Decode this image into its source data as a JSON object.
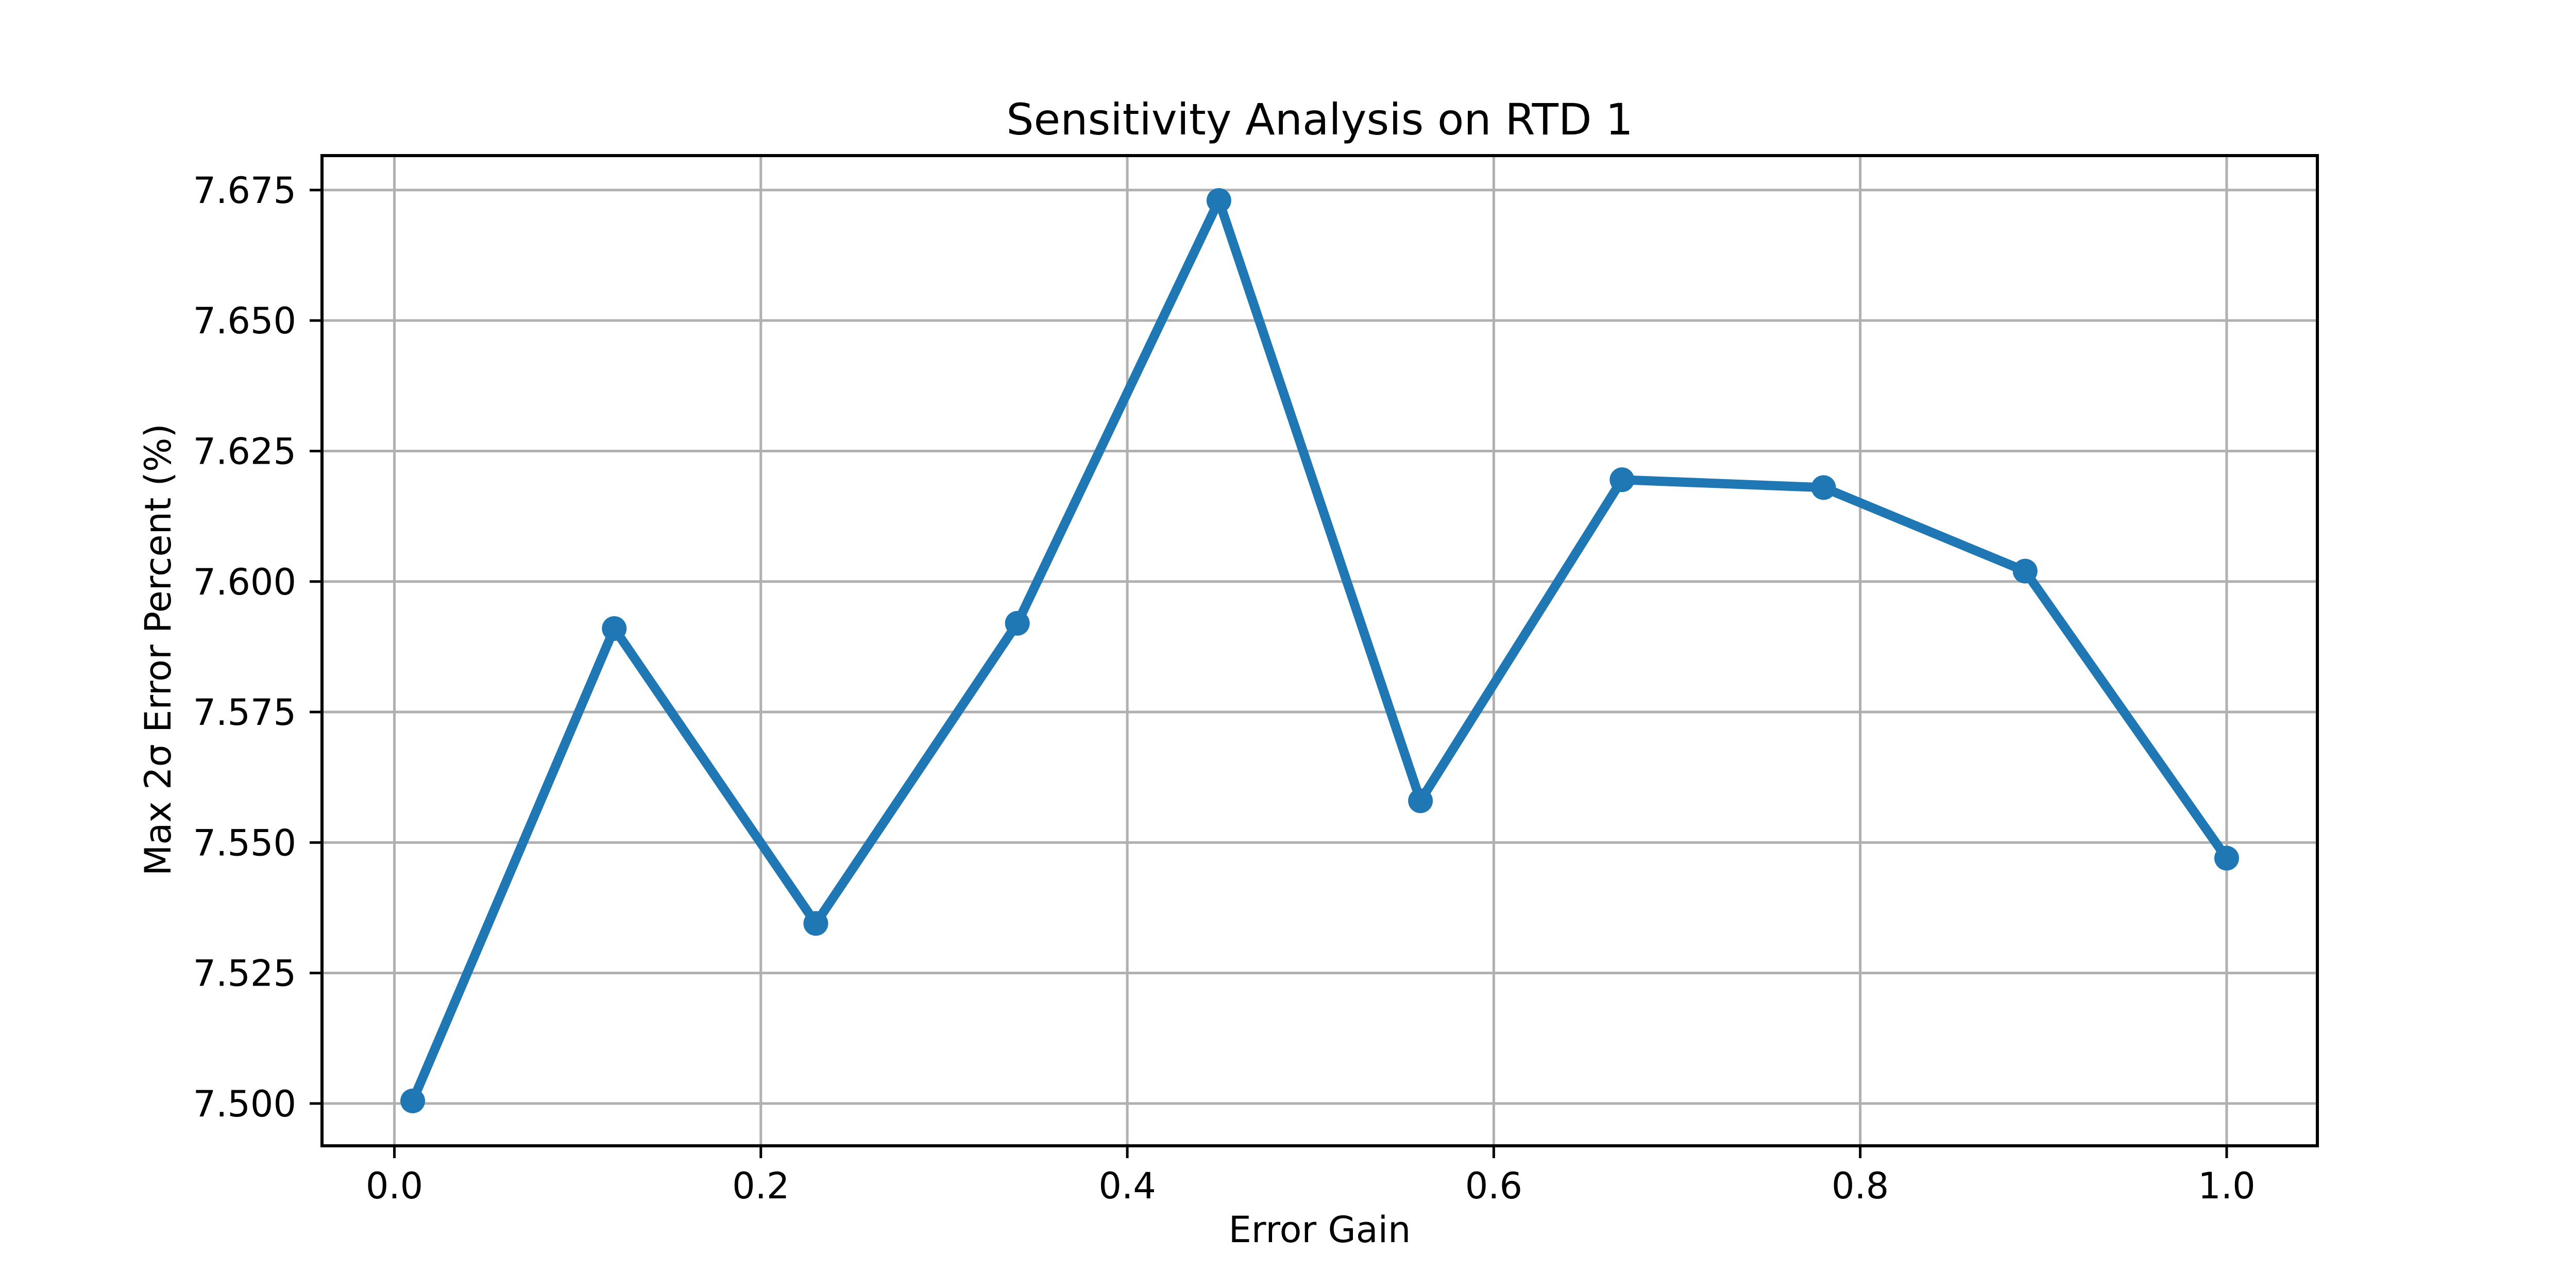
{
  "figure": {
    "background": "#ffffff"
  },
  "chart_data": {
    "type": "line",
    "title": "Sensitivity Analysis on RTD 1",
    "xlabel": "Error Gain",
    "ylabel": "Max 2σ Error Percent (%)",
    "x": [
      0.01,
      0.12,
      0.23,
      0.34,
      0.45,
      0.56,
      0.67,
      0.78,
      0.89,
      1.0
    ],
    "y": [
      7.5005,
      7.591,
      7.5345,
      7.592,
      7.673,
      7.558,
      7.6195,
      7.618,
      7.602,
      7.547
    ],
    "xticks": {
      "values": [
        0.0,
        0.2,
        0.4,
        0.6,
        0.8,
        1.0
      ],
      "labels": [
        "0.0",
        "0.2",
        "0.4",
        "0.6",
        "0.8",
        "1.0"
      ]
    },
    "yticks": {
      "values": [
        7.5,
        7.525,
        7.55,
        7.575,
        7.6,
        7.625,
        7.65,
        7.675
      ],
      "labels": [
        "7.500",
        "7.525",
        "7.550",
        "7.575",
        "7.600",
        "7.625",
        "7.650",
        "7.675"
      ]
    },
    "xlim": [
      -0.0395,
      1.0495
    ],
    "ylim": [
      7.4919,
      7.6816
    ],
    "grid": true,
    "legend": "none",
    "line_color": "#1f77b4",
    "marker": "o",
    "marker_color": "#1f77b4",
    "grid_color": "#b0b0b0",
    "spine_color": "#000000",
    "text_color": "#000000"
  }
}
